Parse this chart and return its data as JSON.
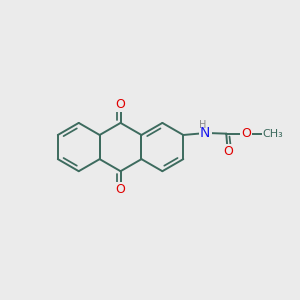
{
  "bg_color": "#ebebeb",
  "bond_color": "#3d6b5e",
  "bond_width": 1.4,
  "atom_colors": {
    "O": "#e00000",
    "N": "#1a1aee",
    "C": "#3d6b5e",
    "H": "#888888"
  },
  "font_size_atom": 9,
  "font_size_small": 7,
  "fig_size": [
    3.0,
    3.0
  ],
  "dpi": 100,
  "xlim": [
    0,
    10
  ],
  "ylim": [
    0,
    10
  ]
}
